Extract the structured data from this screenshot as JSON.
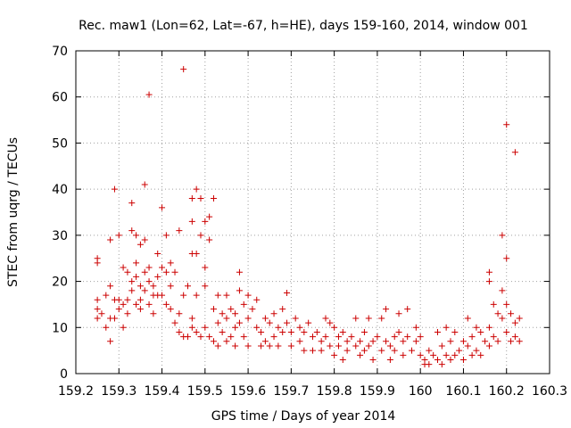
{
  "chart_data": {
    "type": "scatter",
    "title": "Rec. maw1 (Lon=62, Lat=-67, h=HE), days 159-160, 2014, window 001",
    "xlabel": "GPS time / Days of year 2014",
    "ylabel": "STEC from uqrg / TECUs",
    "xlim": [
      159.2,
      160.3
    ],
    "ylim": [
      0,
      70
    ],
    "xticks": [
      159.2,
      159.3,
      159.4,
      159.5,
      159.6,
      159.7,
      159.8,
      159.9,
      160.0,
      160.1,
      160.2,
      160.3
    ],
    "xtick_labels": [
      "159.2",
      "159.3",
      "159.4",
      "159.5",
      "159.6",
      "159.7",
      "159.8",
      "159.9",
      "160",
      "160.1",
      "160.2",
      "160.3"
    ],
    "yticks": [
      0,
      10,
      20,
      30,
      40,
      50,
      60,
      70
    ],
    "ytick_labels": [
      "0",
      "10",
      "20",
      "30",
      "40",
      "50",
      "60",
      "70"
    ],
    "grid": true,
    "marker": "+",
    "color": "#cc0000",
    "series": [
      {
        "name": "STEC",
        "points": [
          [
            159.25,
            25
          ],
          [
            159.25,
            24
          ],
          [
            159.25,
            16
          ],
          [
            159.25,
            14
          ],
          [
            159.25,
            12
          ],
          [
            159.26,
            13
          ],
          [
            159.27,
            10
          ],
          [
            159.27,
            17
          ],
          [
            159.28,
            12
          ],
          [
            159.28,
            19
          ],
          [
            159.28,
            29
          ],
          [
            159.28,
            7
          ],
          [
            159.29,
            40
          ],
          [
            159.29,
            16
          ],
          [
            159.29,
            12
          ],
          [
            159.3,
            16
          ],
          [
            159.3,
            14
          ],
          [
            159.3,
            30
          ],
          [
            159.31,
            23
          ],
          [
            159.31,
            15
          ],
          [
            159.31,
            10
          ],
          [
            159.32,
            16
          ],
          [
            159.32,
            22
          ],
          [
            159.32,
            13
          ],
          [
            159.33,
            37
          ],
          [
            159.33,
            31
          ],
          [
            159.33,
            20
          ],
          [
            159.33,
            18
          ],
          [
            159.34,
            30
          ],
          [
            159.34,
            24
          ],
          [
            159.34,
            21
          ],
          [
            159.34,
            15
          ],
          [
            159.35,
            28
          ],
          [
            159.35,
            19
          ],
          [
            159.35,
            16
          ],
          [
            159.35,
            14
          ],
          [
            159.36,
            41
          ],
          [
            159.36,
            29
          ],
          [
            159.36,
            22
          ],
          [
            159.36,
            18
          ],
          [
            159.37,
            60.5
          ],
          [
            159.37,
            23
          ],
          [
            159.37,
            20
          ],
          [
            159.37,
            15
          ],
          [
            159.38,
            19
          ],
          [
            159.38,
            17
          ],
          [
            159.38,
            13
          ],
          [
            159.39,
            26
          ],
          [
            159.39,
            21
          ],
          [
            159.39,
            17
          ],
          [
            159.4,
            36
          ],
          [
            159.4,
            23
          ],
          [
            159.4,
            17
          ],
          [
            159.41,
            22
          ],
          [
            159.41,
            30
          ],
          [
            159.41,
            15
          ],
          [
            159.42,
            24
          ],
          [
            159.42,
            19
          ],
          [
            159.42,
            14
          ],
          [
            159.43,
            11
          ],
          [
            159.43,
            22
          ],
          [
            159.44,
            31
          ],
          [
            159.44,
            13
          ],
          [
            159.44,
            9
          ],
          [
            159.45,
            66
          ],
          [
            159.45,
            17
          ],
          [
            159.45,
            8
          ],
          [
            159.46,
            19
          ],
          [
            159.46,
            8
          ],
          [
            159.47,
            38
          ],
          [
            159.47,
            33
          ],
          [
            159.47,
            26
          ],
          [
            159.47,
            12
          ],
          [
            159.47,
            10
          ],
          [
            159.48,
            40
          ],
          [
            159.48,
            26
          ],
          [
            159.48,
            17
          ],
          [
            159.48,
            9
          ],
          [
            159.49,
            38
          ],
          [
            159.49,
            30
          ],
          [
            159.49,
            8
          ],
          [
            159.5,
            33
          ],
          [
            159.5,
            23
          ],
          [
            159.5,
            19
          ],
          [
            159.5,
            10
          ],
          [
            159.51,
            34
          ],
          [
            159.51,
            29
          ],
          [
            159.51,
            8
          ],
          [
            159.52,
            38
          ],
          [
            159.52,
            14
          ],
          [
            159.52,
            7
          ],
          [
            159.53,
            17
          ],
          [
            159.53,
            11
          ],
          [
            159.53,
            6
          ],
          [
            159.54,
            13
          ],
          [
            159.54,
            9
          ],
          [
            159.55,
            17
          ],
          [
            159.55,
            12
          ],
          [
            159.55,
            7
          ],
          [
            159.56,
            14
          ],
          [
            159.56,
            8
          ],
          [
            159.57,
            13
          ],
          [
            159.57,
            10
          ],
          [
            159.57,
            6
          ],
          [
            159.58,
            22
          ],
          [
            159.58,
            18
          ],
          [
            159.58,
            11
          ],
          [
            159.59,
            15
          ],
          [
            159.59,
            8
          ],
          [
            159.6,
            17
          ],
          [
            159.6,
            12
          ],
          [
            159.6,
            6
          ],
          [
            159.61,
            14
          ],
          [
            159.62,
            16
          ],
          [
            159.62,
            10
          ],
          [
            159.63,
            9
          ],
          [
            159.63,
            6
          ],
          [
            159.64,
            12
          ],
          [
            159.64,
            7
          ],
          [
            159.65,
            11
          ],
          [
            159.65,
            6
          ],
          [
            159.66,
            13
          ],
          [
            159.66,
            8
          ],
          [
            159.67,
            10
          ],
          [
            159.67,
            6
          ],
          [
            159.68,
            14
          ],
          [
            159.68,
            9
          ],
          [
            159.69,
            17.5
          ],
          [
            159.69,
            11
          ],
          [
            159.7,
            9
          ],
          [
            159.7,
            6
          ],
          [
            159.71,
            12
          ],
          [
            159.72,
            10
          ],
          [
            159.72,
            7
          ],
          [
            159.73,
            9
          ],
          [
            159.73,
            5
          ],
          [
            159.74,
            11
          ],
          [
            159.75,
            8
          ],
          [
            159.75,
            5
          ],
          [
            159.76,
            9
          ],
          [
            159.77,
            7
          ],
          [
            159.77,
            5
          ],
          [
            159.78,
            12
          ],
          [
            159.78,
            8
          ],
          [
            159.79,
            11
          ],
          [
            159.79,
            6
          ],
          [
            159.8,
            10
          ],
          [
            159.8,
            4
          ],
          [
            159.81,
            8
          ],
          [
            159.81,
            6
          ],
          [
            159.82,
            9
          ],
          [
            159.82,
            3
          ],
          [
            159.83,
            7
          ],
          [
            159.83,
            5
          ],
          [
            159.84,
            8
          ],
          [
            159.85,
            12
          ],
          [
            159.85,
            6
          ],
          [
            159.86,
            7
          ],
          [
            159.86,
            4
          ],
          [
            159.87,
            9
          ],
          [
            159.87,
            5
          ],
          [
            159.88,
            12
          ],
          [
            159.88,
            6
          ],
          [
            159.89,
            7
          ],
          [
            159.89,
            3
          ],
          [
            159.9,
            8
          ],
          [
            159.91,
            12
          ],
          [
            159.91,
            5
          ],
          [
            159.92,
            14
          ],
          [
            159.92,
            7
          ],
          [
            159.93,
            6
          ],
          [
            159.93,
            3
          ],
          [
            159.94,
            8
          ],
          [
            159.94,
            5
          ],
          [
            159.95,
            13
          ],
          [
            159.95,
            9
          ],
          [
            159.96,
            7
          ],
          [
            159.96,
            4
          ],
          [
            159.97,
            14
          ],
          [
            159.97,
            8
          ],
          [
            159.98,
            5
          ],
          [
            159.99,
            10
          ],
          [
            159.99,
            7
          ],
          [
            160.0,
            8
          ],
          [
            160.0,
            4
          ],
          [
            160.01,
            3
          ],
          [
            160.01,
            2
          ],
          [
            160.02,
            5
          ],
          [
            160.02,
            2
          ],
          [
            160.03,
            4
          ],
          [
            160.04,
            9
          ],
          [
            160.04,
            3
          ],
          [
            160.05,
            6
          ],
          [
            160.05,
            2
          ],
          [
            160.06,
            10
          ],
          [
            160.06,
            4
          ],
          [
            160.07,
            7
          ],
          [
            160.07,
            3
          ],
          [
            160.08,
            9
          ],
          [
            160.08,
            4
          ],
          [
            160.09,
            5
          ],
          [
            160.1,
            7
          ],
          [
            160.1,
            3
          ],
          [
            160.11,
            12
          ],
          [
            160.11,
            6
          ],
          [
            160.12,
            8
          ],
          [
            160.12,
            4
          ],
          [
            160.13,
            10
          ],
          [
            160.13,
            5
          ],
          [
            160.14,
            9
          ],
          [
            160.14,
            4
          ],
          [
            160.15,
            7
          ],
          [
            160.16,
            22
          ],
          [
            160.16,
            20
          ],
          [
            160.16,
            10
          ],
          [
            160.16,
            6
          ],
          [
            160.17,
            15
          ],
          [
            160.17,
            8
          ],
          [
            160.18,
            13
          ],
          [
            160.18,
            7
          ],
          [
            160.19,
            30
          ],
          [
            160.19,
            18
          ],
          [
            160.19,
            12
          ],
          [
            160.2,
            54
          ],
          [
            160.2,
            25
          ],
          [
            160.2,
            15
          ],
          [
            160.2,
            9
          ],
          [
            160.21,
            13
          ],
          [
            160.21,
            7
          ],
          [
            160.22,
            48
          ],
          [
            160.22,
            11
          ],
          [
            160.22,
            8
          ],
          [
            160.23,
            12
          ],
          [
            160.23,
            7
          ]
        ]
      }
    ]
  }
}
